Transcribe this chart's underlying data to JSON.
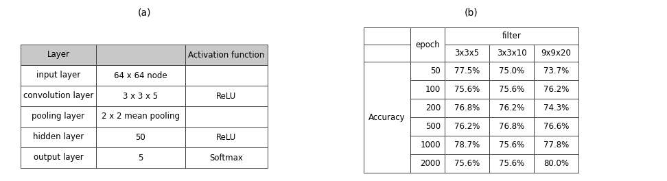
{
  "title_a": "(a)",
  "title_b": "(b)",
  "table_a_header": [
    "Layer",
    "",
    "Activation function"
  ],
  "table_a_rows": [
    [
      "input layer",
      "64 x 64 node",
      ""
    ],
    [
      "convolution layer",
      "3 x 3 x 5",
      "ReLU"
    ],
    [
      "pooling layer",
      "2 x 2 mean pooling",
      ""
    ],
    [
      "hidden layer",
      "50",
      "ReLU"
    ],
    [
      "output layer",
      "5",
      "Softmax"
    ]
  ],
  "table_b_row_label": "Accuracy",
  "table_b_epochs": [
    "50",
    "100",
    "200",
    "500",
    "1000",
    "2000"
  ],
  "table_b_data": [
    [
      "77.5%",
      "75.0%",
      "73.7%"
    ],
    [
      "75.6%",
      "75.6%",
      "76.2%"
    ],
    [
      "76.8%",
      "76.2%",
      "74.3%"
    ],
    [
      "76.2%",
      "76.8%",
      "76.6%"
    ],
    [
      "78.7%",
      "75.6%",
      "77.8%"
    ],
    [
      "75.6%",
      "75.6%",
      "80.0%"
    ]
  ],
  "filter_labels": [
    "3x3x5",
    "3x3x10",
    "9x9x20"
  ],
  "header_bg": "#c8c8c8",
  "cell_bg": "#ffffff",
  "border_color": "#444444",
  "font_size": 8.5,
  "title_font_size": 10,
  "fig_width": 9.72,
  "fig_height": 2.64,
  "dpi": 100
}
